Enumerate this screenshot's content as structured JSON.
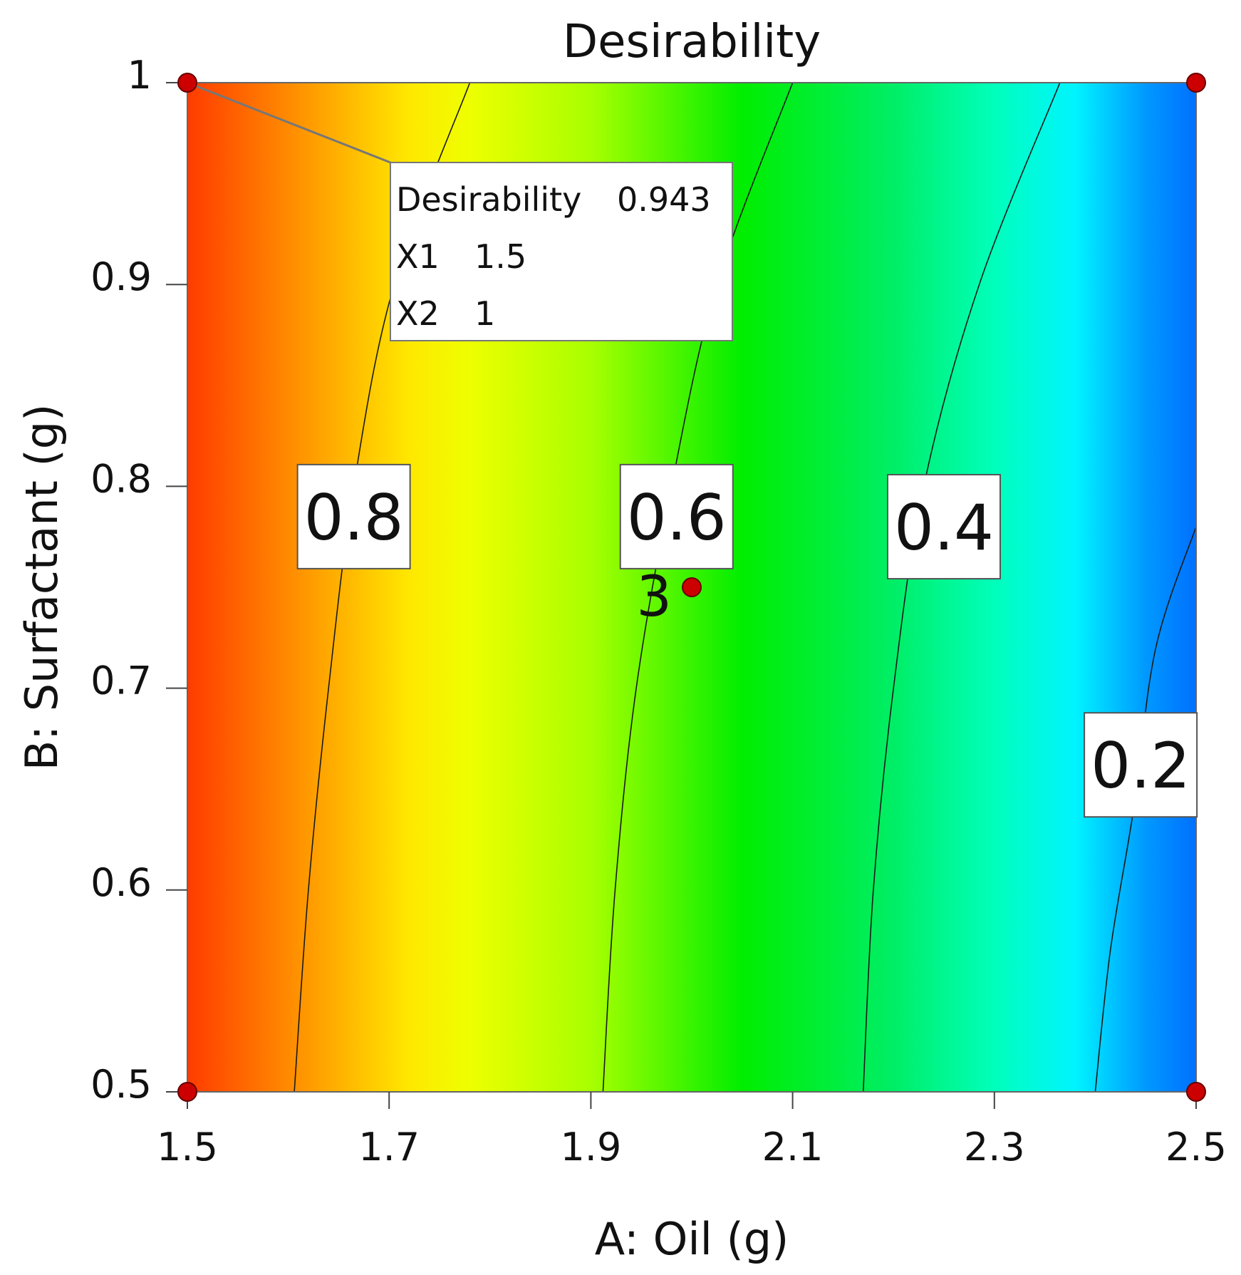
{
  "chart_data": {
    "type": "contour",
    "title": "Desirability",
    "xlabel": "A: Oil (g)",
    "ylabel": "B: Surfactant (g)",
    "xlim": [
      1.5,
      2.5
    ],
    "ylim": [
      0.5,
      1.0
    ],
    "x_ticks": [
      {
        "value": 1.5,
        "label": "1.5"
      },
      {
        "value": 1.7,
        "label": "1.7"
      },
      {
        "value": 1.9,
        "label": "1.9"
      },
      {
        "value": 2.1,
        "label": "2.1"
      },
      {
        "value": 2.3,
        "label": "2.3"
      },
      {
        "value": 2.5,
        "label": "2.5"
      }
    ],
    "y_ticks": [
      {
        "value": 0.5,
        "label": "0.5"
      },
      {
        "value": 0.6,
        "label": "0.6"
      },
      {
        "value": 0.7,
        "label": "0.7"
      },
      {
        "value": 0.8,
        "label": "0.8"
      },
      {
        "value": 0.9,
        "label": "0.9"
      },
      {
        "value": 1.0,
        "label": "1"
      }
    ],
    "color_field": {
      "description": "desirability decreasing from left to right",
      "stops": [
        {
          "x": 1.5,
          "color": "#ff3b00"
        },
        {
          "x": 1.62,
          "color": "#ff9a00"
        },
        {
          "x": 1.72,
          "color": "#ffe800"
        },
        {
          "x": 1.78,
          "color": "#eeff00"
        },
        {
          "x": 1.9,
          "color": "#a8ff00"
        },
        {
          "x": 2.05,
          "color": "#00ee00"
        },
        {
          "x": 2.2,
          "color": "#00ee66"
        },
        {
          "x": 2.3,
          "color": "#00ffbb"
        },
        {
          "x": 2.38,
          "color": "#00f4ff"
        },
        {
          "x": 2.45,
          "color": "#0099ff"
        },
        {
          "x": 2.5,
          "color": "#0070ff"
        }
      ]
    },
    "contours": [
      {
        "level": 0.8,
        "label": "0.8",
        "label_at": {
          "x": 1.665,
          "y": 0.785
        },
        "points": [
          [
            1.606,
            0.5
          ],
          [
            1.62,
            0.6
          ],
          [
            1.64,
            0.7
          ],
          [
            1.665,
            0.8
          ],
          [
            1.705,
            0.9
          ],
          [
            1.78,
            1.0
          ]
        ]
      },
      {
        "level": 0.6,
        "label": "0.6",
        "label_at": {
          "x": 1.985,
          "y": 0.785
        },
        "points": [
          [
            1.912,
            0.5
          ],
          [
            1.924,
            0.6
          ],
          [
            1.945,
            0.7
          ],
          [
            1.98,
            0.8
          ],
          [
            2.025,
            0.9
          ],
          [
            2.1,
            1.0
          ]
        ]
      },
      {
        "level": 0.4,
        "label": "0.4",
        "label_at": {
          "x": 2.25,
          "y": 0.78
        },
        "points": [
          [
            2.17,
            0.5
          ],
          [
            2.18,
            0.6
          ],
          [
            2.2,
            0.7
          ],
          [
            2.23,
            0.8
          ],
          [
            2.285,
            0.9
          ],
          [
            2.365,
            1.0
          ]
        ]
      },
      {
        "level": 0.2,
        "label": "0.2",
        "label_at": {
          "x": 2.445,
          "y": 0.662
        },
        "points": [
          [
            2.4,
            0.5
          ],
          [
            2.415,
            0.57
          ],
          [
            2.438,
            0.64
          ],
          [
            2.46,
            0.72
          ],
          [
            2.5,
            0.78
          ]
        ]
      }
    ],
    "design_points": [
      {
        "x": 1.5,
        "y": 1.0
      },
      {
        "x": 2.5,
        "y": 1.0
      },
      {
        "x": 1.5,
        "y": 0.5
      },
      {
        "x": 2.5,
        "y": 0.5
      },
      {
        "x": 2.0,
        "y": 0.75,
        "count_label": "3"
      }
    ],
    "callout": {
      "x": 1.5,
      "y": 1.0,
      "lines": [
        {
          "name": "Desirability",
          "value": "0.943"
        },
        {
          "name": "X1",
          "value": "1.5"
        },
        {
          "name": "X2",
          "value": "1"
        }
      ]
    },
    "colors": {
      "design_point": "#cc0000",
      "contour_line": "#1a1a1a",
      "plot_border": "#666666"
    }
  }
}
